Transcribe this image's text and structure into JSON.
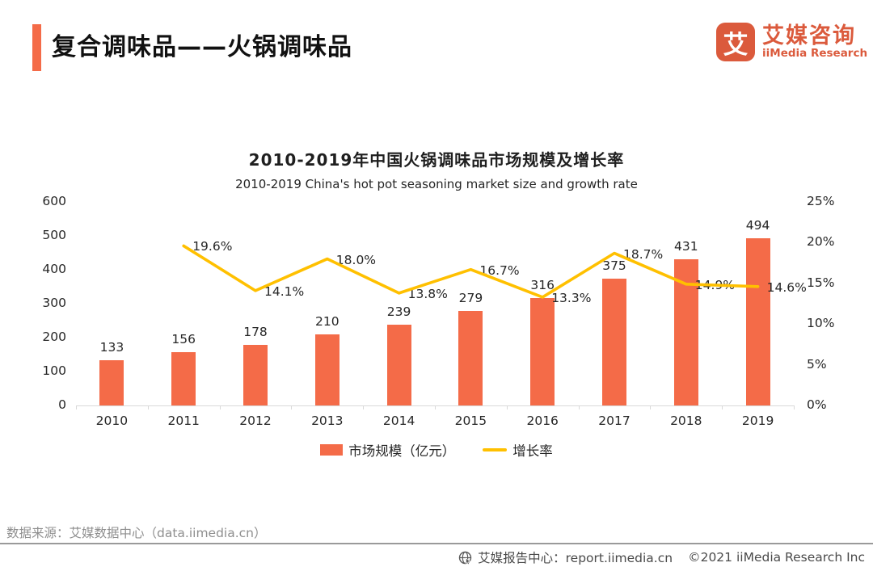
{
  "theme": {
    "accent": "#F46B48",
    "logo": "#DB5A3C",
    "line": "#FFC000",
    "axis": "#D9D9D9",
    "muted": "#8F8F8F"
  },
  "header": {
    "title": "复合调味品——火锅调味品",
    "logo": {
      "glyph": "艾",
      "name_cn": "艾媒咨询",
      "name_en": "iiMedia Research"
    }
  },
  "chart_data": {
    "type": "bar+line combo",
    "title": "2010-2019年中国火锅调味品市场规模及增长率",
    "subtitle": "2010-2019 China's hot pot seasoning market size and growth rate",
    "categories": [
      "2010",
      "2011",
      "2012",
      "2013",
      "2014",
      "2015",
      "2016",
      "2017",
      "2018",
      "2019"
    ],
    "series": [
      {
        "name": "市场规模（亿元）",
        "type": "bar",
        "axis": "left",
        "color": "#F46B48",
        "values": [
          133,
          156,
          178,
          210,
          239,
          279,
          316,
          375,
          431,
          494
        ]
      },
      {
        "name": "增长率",
        "type": "line",
        "axis": "right",
        "color": "#FFC000",
        "label_suffix": "%",
        "values": [
          null,
          19.6,
          14.1,
          18.0,
          13.8,
          16.7,
          13.3,
          18.7,
          14.9,
          14.6
        ]
      }
    ],
    "left_axis": {
      "min": 0,
      "max": 600,
      "step": 100,
      "ticks": [
        "0",
        "100",
        "200",
        "300",
        "400",
        "500",
        "600"
      ]
    },
    "right_axis": {
      "min": 0,
      "max": 25,
      "step": 5,
      "ticks": [
        "0%",
        "5%",
        "10%",
        "15%",
        "20%",
        "25%"
      ]
    },
    "grid": false,
    "legend_position": "bottom"
  },
  "footer": {
    "source": "数据来源：艾媒数据中心（data.iimedia.cn）",
    "report_center": "艾媒报告中心：report.iimedia.cn",
    "copyright": "©2021  iiMedia Research Inc"
  }
}
